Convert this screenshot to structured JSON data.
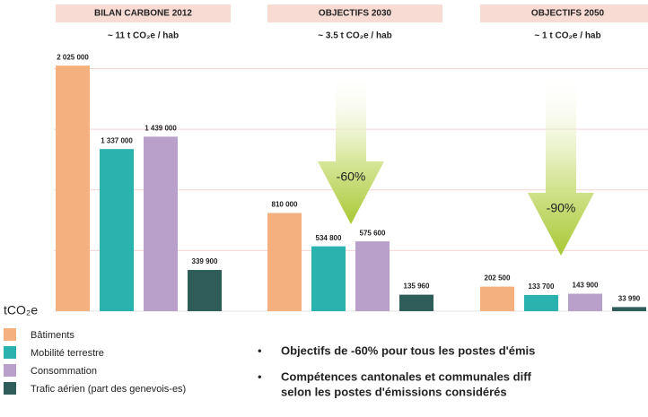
{
  "chart_data": {
    "type": "bar",
    "categories": [
      "BILAN CARBONE 2012",
      "OBJECTIFS 2030",
      "OBJECTIFS 2050"
    ],
    "subtitles": [
      "~ 11 t CO₂e / hab",
      "~ 3.5 t CO₂e / hab",
      "~ 1 t CO₂e / hab"
    ],
    "y_label": "tCO₂e",
    "ylim": [
      0,
      2100000
    ],
    "yticks": [
      500000,
      1000000,
      1500000,
      2000000
    ],
    "grid": true,
    "legend": "bottom-left",
    "series": [
      {
        "name": "Bâtiments",
        "color": "#f5b07f",
        "values": [
          2025000,
          810000,
          202500
        ],
        "value_labels": [
          "2 025 000",
          "810 000",
          "202 500"
        ]
      },
      {
        "name": "Mobilité terrestre",
        "color": "#2ab3ae",
        "values": [
          1337000,
          534800,
          133700
        ],
        "value_labels": [
          "1 337 000",
          "534 800",
          "133 700"
        ]
      },
      {
        "name": "Consommation",
        "color": "#b8a0cb",
        "values": [
          1439000,
          575600,
          143900
        ],
        "value_labels": [
          "1 439 000",
          "575 600",
          "143 900"
        ]
      },
      {
        "name": "Trafic aérien (part des genevois-es)",
        "color": "#2e5d5a",
        "values": [
          339900,
          135960,
          33990
        ],
        "value_labels": [
          "339 900",
          "135 960",
          "33 990"
        ]
      }
    ],
    "annotations": [
      "-60%",
      "-90%"
    ]
  },
  "bullets": [
    [
      "Objectifs de -60% pour tous les postes d'émis"
    ],
    [
      "Compétences cantonales et communales diff",
      "selon les postes d'émissions considérés"
    ]
  ]
}
